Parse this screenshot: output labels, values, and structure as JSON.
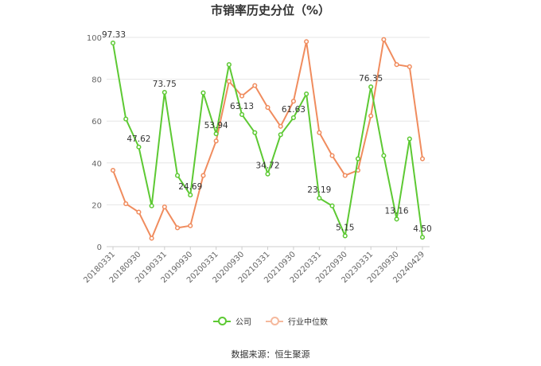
{
  "chart_data": {
    "type": "line",
    "title": "市销率历史分位（%）",
    "ylim": [
      0,
      100
    ],
    "yticks": [
      0,
      20,
      40,
      60,
      80,
      100
    ],
    "x": [
      "20180331",
      "",
      "20180930",
      "",
      "20190331",
      "",
      "20190930",
      "",
      "20200331",
      "",
      "20200930",
      "",
      "20210331",
      "",
      "20210930",
      "",
      "20220331",
      "",
      "20220930",
      "",
      "20230331",
      "",
      "20230930",
      "",
      "20240429"
    ],
    "xtick_labels": [
      "20180331",
      "20180930",
      "20190331",
      "20190930",
      "20200331",
      "20200930",
      "20210331",
      "20210930",
      "20220331",
      "20220930",
      "20230331",
      "20230930",
      "20240429"
    ],
    "series": [
      {
        "name": "公司",
        "color": "#5dc933",
        "values": [
          97.33,
          61,
          47.62,
          19.5,
          73.75,
          34,
          24.69,
          73.5,
          53.94,
          87,
          63.13,
          54.5,
          34.72,
          53.5,
          61.63,
          73,
          23.19,
          19.5,
          5.15,
          42,
          76.35,
          43.5,
          13.16,
          51.5,
          4.5
        ],
        "labels": {
          "0": "97.33",
          "2": "47.62",
          "4": "73.75",
          "6": "24.69",
          "8": "53.94",
          "10": "63.13",
          "12": "34.72",
          "14": "61.63",
          "16": "23.19",
          "18": "5.15",
          "20": "76.35",
          "22": "13.16",
          "24": "4.50"
        }
      },
      {
        "name": "行业中位数",
        "color": "#f08c5e",
        "values": [
          36.5,
          20.5,
          16.5,
          4,
          19,
          9,
          10,
          34,
          50.5,
          79,
          72,
          77,
          66.5,
          57.5,
          69.5,
          98,
          54.5,
          43.5,
          34,
          36.5,
          62.5,
          99,
          87,
          86,
          42
        ]
      }
    ],
    "legend_position": "bottom",
    "grid": true
  },
  "source_text": "数据来源：恒生聚源"
}
